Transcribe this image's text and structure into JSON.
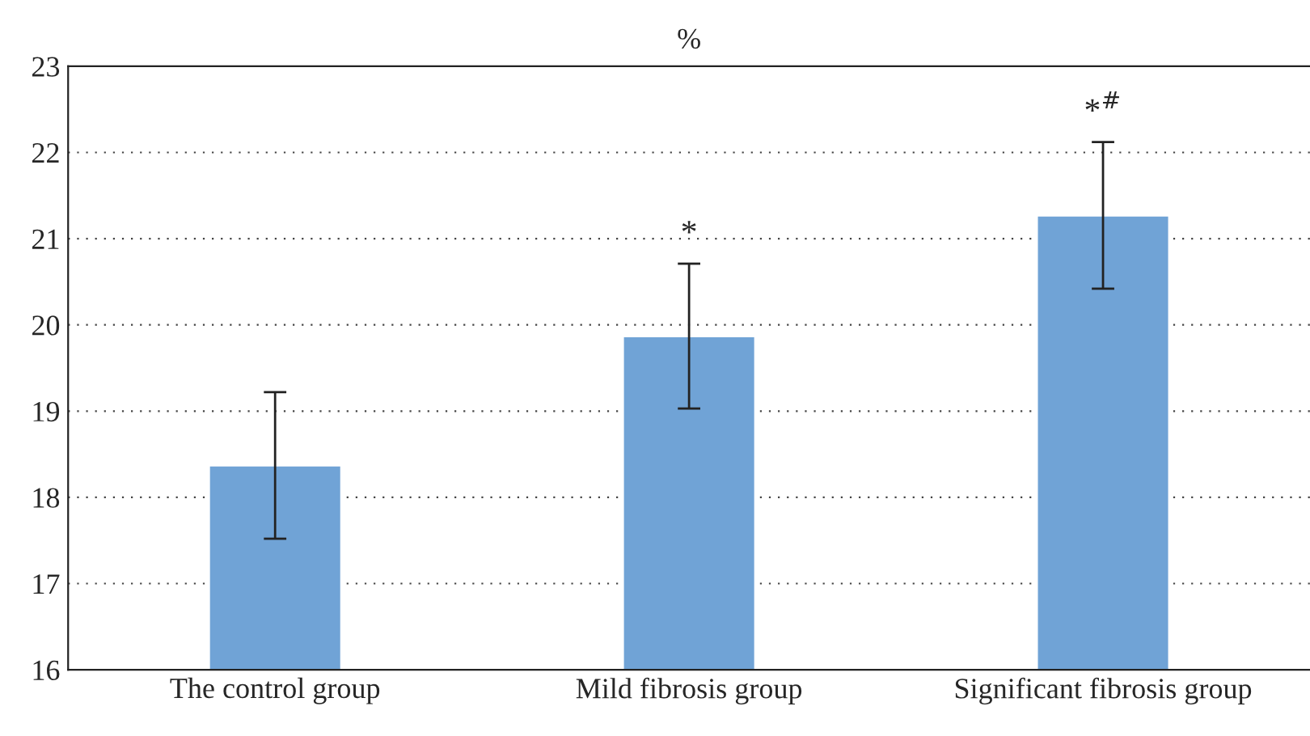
{
  "chart_data": {
    "type": "bar",
    "title": "%",
    "categories": [
      "The control group",
      "Mild fibrosis group",
      "Significant fibrosis group"
    ],
    "values": [
      18.37,
      19.87,
      21.27
    ],
    "errors": [
      0.85,
      0.84,
      0.85
    ],
    "color": "#70a3d6",
    "ylim": [
      16,
      23
    ],
    "yticks": [
      16,
      17,
      18,
      19,
      20,
      21,
      22,
      23
    ],
    "grid": "y",
    "annotations": [
      {
        "text": "*",
        "x": "Mild fibrosis group",
        "y": 20.71
      },
      {
        "text": "*$^{#}$",
        "x": "Significant fibrosis group",
        "y": 22.12
      }
    ]
  }
}
